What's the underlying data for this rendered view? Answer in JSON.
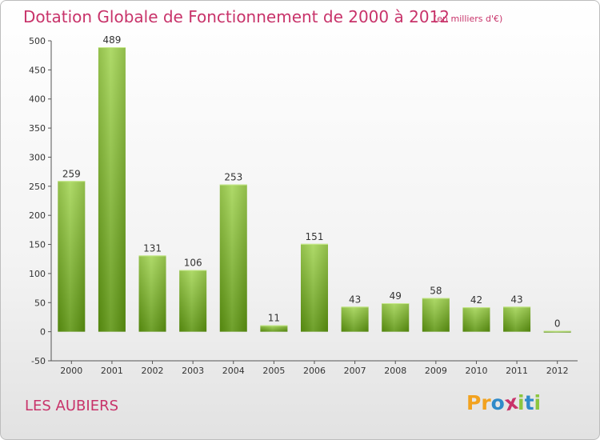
{
  "header": {
    "title": "Dotation Globale de Fonctionnement de 2000 à 2012",
    "subtitle": "(en milliers d'€)"
  },
  "footer": {
    "commune": "LES AUBIERS",
    "logo_text": "Proxiti"
  },
  "chart_data": {
    "type": "bar",
    "categories": [
      "2000",
      "2001",
      "2002",
      "2003",
      "2004",
      "2005",
      "2006",
      "2007",
      "2008",
      "2009",
      "2010",
      "2011",
      "2012"
    ],
    "values": [
      259,
      489,
      131,
      106,
      253,
      11,
      151,
      43,
      49,
      58,
      42,
      43,
      0
    ],
    "ylim": [
      -50,
      500
    ],
    "yticks": [
      -50,
      0,
      50,
      100,
      150,
      200,
      250,
      300,
      350,
      400,
      450,
      500
    ],
    "grid": false,
    "colors": {
      "bar_light": "#9ed04a",
      "bar_dark": "#5c9410",
      "axis": "#555555",
      "text": "#333333"
    }
  },
  "colors": {
    "accent": "#c8336a",
    "logo": [
      "#f2a21f",
      "#2f8ac9",
      "#c8336a",
      "#8cc63e"
    ]
  }
}
